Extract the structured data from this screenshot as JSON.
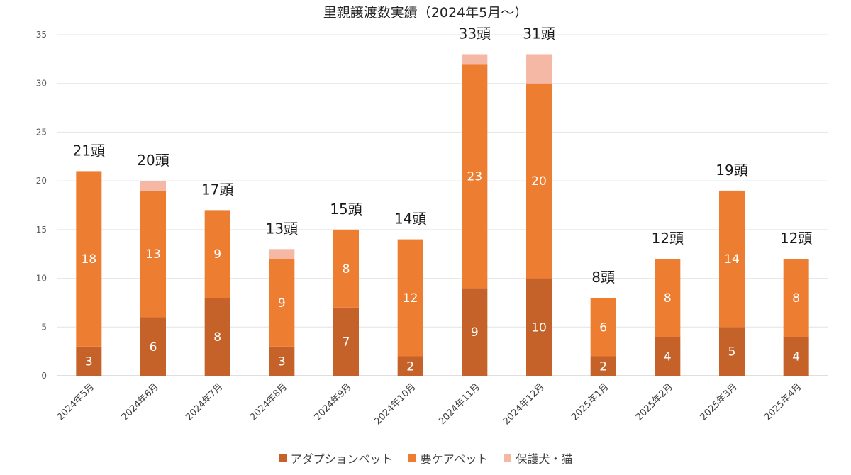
{
  "chart_data": {
    "type": "bar",
    "stacked": true,
    "title": "里親譲渡数実績（2024年5月～）",
    "xlabel": "",
    "ylabel": "",
    "ylim": [
      0,
      35
    ],
    "yticks": [
      0,
      5,
      10,
      15,
      20,
      25,
      30,
      35
    ],
    "grid": true,
    "legend_position": "bottom",
    "categories": [
      "2024年5月",
      "2024年6月",
      "2024年7月",
      "2024年8月",
      "2024年9月",
      "2024年10月",
      "2024年11月",
      "2024年12月",
      "2025年1月",
      "2025年2月",
      "2025年3月",
      "2025年4月"
    ],
    "series": [
      {
        "name": "アダプションペット",
        "color": "#c5622a",
        "values": [
          3,
          6,
          8,
          3,
          7,
          2,
          9,
          10,
          2,
          4,
          5,
          4
        ]
      },
      {
        "name": "要ケアペット",
        "color": "#ed7d31",
        "values": [
          18,
          13,
          9,
          9,
          8,
          12,
          23,
          20,
          6,
          8,
          14,
          8
        ]
      },
      {
        "name": "保護犬・猫",
        "color": "#f4b8a4",
        "values": [
          0,
          1,
          0,
          1,
          0,
          0,
          1,
          3,
          0,
          0,
          0,
          0
        ]
      }
    ],
    "totals": [
      "21頭",
      "20頭",
      "17頭",
      "13頭",
      "15頭",
      "14頭",
      "33頭",
      "31頭",
      "8頭",
      "12頭",
      "19頭",
      "12頭"
    ]
  }
}
